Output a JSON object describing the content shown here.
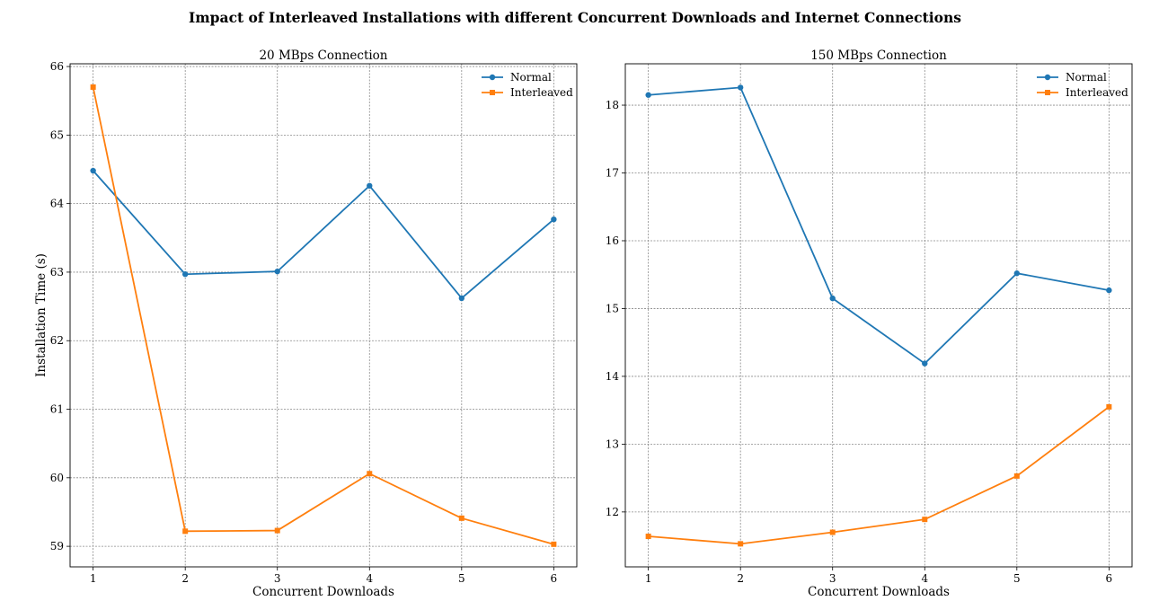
{
  "suptitle": "Impact of Interleaved Installations with different Concurrent Downloads and Internet Connections",
  "chart_data": [
    {
      "type": "line",
      "title": "20 MBps Connection",
      "xlabel": "Concurrent Downloads",
      "ylabel": "Installation Time (s)",
      "x": [
        1,
        2,
        3,
        4,
        5,
        6
      ],
      "xlim": [
        0.75,
        6.25
      ],
      "ylim": [
        58.7,
        66.04
      ],
      "xticks": [
        "1",
        "2",
        "3",
        "4",
        "5",
        "6"
      ],
      "yticks": [
        "59",
        "60",
        "61",
        "62",
        "63",
        "64",
        "65",
        "66"
      ],
      "grid": true,
      "legend": "top-right",
      "series": [
        {
          "name": "Normal",
          "color": "#1f77b4",
          "marker": "circle",
          "values": [
            64.48,
            62.97,
            63.01,
            64.26,
            62.62,
            63.77
          ]
        },
        {
          "name": "Interleaved",
          "color": "#ff7f0e",
          "marker": "square",
          "values": [
            65.7,
            59.22,
            59.23,
            60.06,
            59.41,
            59.03
          ]
        }
      ]
    },
    {
      "type": "line",
      "title": "150 MBps Connection",
      "xlabel": "Concurrent Downloads",
      "ylabel": "",
      "x": [
        1,
        2,
        3,
        4,
        5,
        6
      ],
      "xlim": [
        0.75,
        6.25
      ],
      "ylim": [
        11.19,
        18.61
      ],
      "xticks": [
        "1",
        "2",
        "3",
        "4",
        "5",
        "6"
      ],
      "yticks": [
        "12",
        "13",
        "14",
        "15",
        "16",
        "17",
        "18"
      ],
      "grid": true,
      "legend": "top-right",
      "series": [
        {
          "name": "Normal",
          "color": "#1f77b4",
          "marker": "circle",
          "values": [
            18.15,
            18.26,
            15.15,
            14.19,
            15.52,
            15.27
          ]
        },
        {
          "name": "Interleaved",
          "color": "#ff7f0e",
          "marker": "square",
          "values": [
            11.64,
            11.53,
            11.7,
            11.89,
            12.53,
            13.55
          ]
        }
      ]
    }
  ]
}
